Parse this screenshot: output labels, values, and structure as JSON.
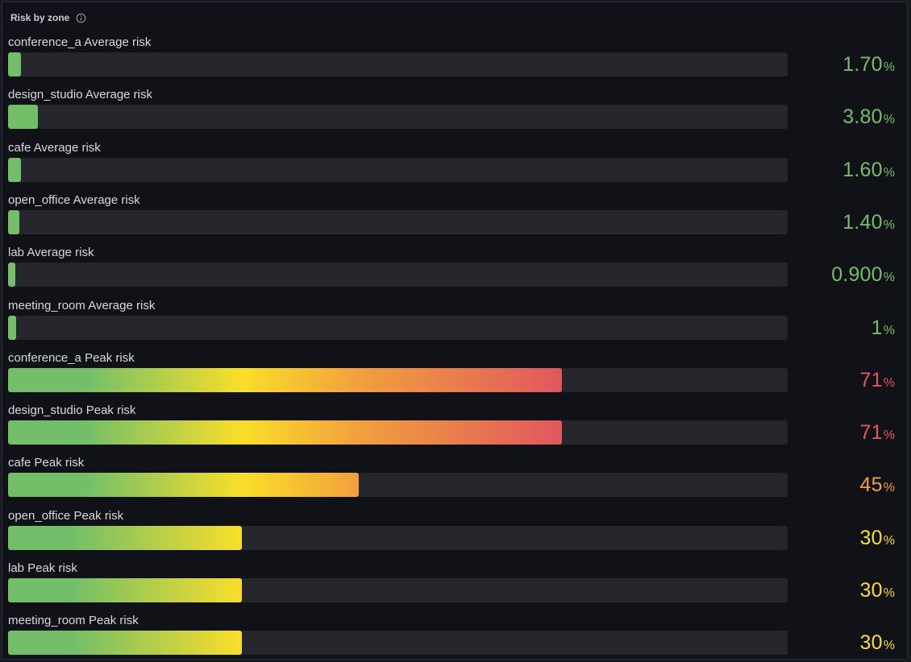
{
  "panel": {
    "title": "Risk by zone",
    "info_icon": "info-circle-icon"
  },
  "colors": {
    "green": "#73bf69",
    "yellow": "#fade2a",
    "orange": "#f2a03d",
    "red": "#e0575e",
    "track": "#25272d"
  },
  "chart_data": {
    "type": "bar",
    "orientation": "horizontal",
    "ylim": [
      0,
      100
    ],
    "unit": "%",
    "thresholds": [
      {
        "value": 0,
        "color": "#73bf69"
      },
      {
        "value": 30,
        "color": "#fade2a"
      },
      {
        "value": 45,
        "color": "#f2a03d"
      },
      {
        "value": 71,
        "color": "#e0575e"
      }
    ],
    "bars": [
      {
        "label": "conference_a Average risk",
        "value": 1.7,
        "display": "1.70",
        "unit": "%",
        "color": "#73bf69"
      },
      {
        "label": "design_studio Average risk",
        "value": 3.8,
        "display": "3.80",
        "unit": "%",
        "color": "#73bf69"
      },
      {
        "label": "cafe Average risk",
        "value": 1.6,
        "display": "1.60",
        "unit": "%",
        "color": "#73bf69"
      },
      {
        "label": "open_office Average risk",
        "value": 1.4,
        "display": "1.40",
        "unit": "%",
        "color": "#73bf69"
      },
      {
        "label": "lab Average risk",
        "value": 0.9,
        "display": "0.900",
        "unit": "%",
        "color": "#73bf69"
      },
      {
        "label": "meeting_room Average risk",
        "value": 1,
        "display": "1",
        "unit": "%",
        "color": "#73bf69"
      },
      {
        "label": "conference_a Peak risk",
        "value": 71,
        "display": "71",
        "unit": "%",
        "color": "#e0575e"
      },
      {
        "label": "design_studio Peak risk",
        "value": 71,
        "display": "71",
        "unit": "%",
        "color": "#e0575e"
      },
      {
        "label": "cafe Peak risk",
        "value": 45,
        "display": "45",
        "unit": "%",
        "color": "#f2a03d"
      },
      {
        "label": "open_office Peak risk",
        "value": 30,
        "display": "30",
        "unit": "%",
        "color": "#fade2a"
      },
      {
        "label": "lab Peak risk",
        "value": 30,
        "display": "30",
        "unit": "%",
        "color": "#fade2a"
      },
      {
        "label": "meeting_room Peak risk",
        "value": 30,
        "display": "30",
        "unit": "%",
        "color": "#fade2a"
      }
    ]
  }
}
